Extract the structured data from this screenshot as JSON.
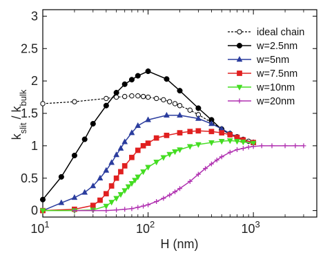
{
  "chart_data": {
    "type": "line",
    "x_scale": "log",
    "xlim": [
      10,
      4000
    ],
    "ylim": [
      -0.1,
      3.1
    ],
    "xlabel": {
      "main": "H (nm)"
    },
    "ylabel": {
      "k1": "k",
      "sub1": "slit",
      "slash": " / ",
      "k2": "k",
      "sub2": "bulk"
    },
    "x_ticks": [
      {
        "value": 10,
        "base": "10",
        "exp": "1"
      },
      {
        "value": 100,
        "base": "10",
        "exp": "2"
      },
      {
        "value": 1000,
        "base": "10",
        "exp": "3"
      }
    ],
    "y_ticks": [
      {
        "value": 0,
        "label": "0"
      },
      {
        "value": 0.5,
        "label": "0.5"
      },
      {
        "value": 1,
        "label": "1"
      },
      {
        "value": 1.5,
        "label": "1.5"
      },
      {
        "value": 2,
        "label": "2"
      },
      {
        "value": 2.5,
        "label": "2.5"
      },
      {
        "value": 3,
        "label": "3"
      }
    ],
    "grid": false,
    "legend_position": "top-right",
    "series": [
      {
        "name": "ideal chain",
        "color": "#000000",
        "marker": "open-circle",
        "dashed": true,
        "x": [
          10,
          20,
          40,
          50,
          60,
          70,
          80,
          90,
          100,
          120,
          140,
          160,
          180,
          200,
          250,
          300,
          400,
          500,
          600,
          700,
          800,
          900,
          1000
        ],
        "y": [
          1.65,
          1.68,
          1.73,
          1.75,
          1.76,
          1.77,
          1.77,
          1.76,
          1.75,
          1.73,
          1.71,
          1.68,
          1.65,
          1.62,
          1.55,
          1.48,
          1.36,
          1.26,
          1.19,
          1.14,
          1.1,
          1.07,
          1.05
        ]
      },
      {
        "name": "w=2.5nm",
        "color": "#000000",
        "marker": "filled-circle",
        "dashed": false,
        "x": [
          10,
          15,
          20,
          25,
          30,
          40,
          50,
          60,
          70,
          80,
          100,
          150,
          200,
          300,
          400,
          500,
          700,
          1000
        ],
        "y": [
          0.17,
          0.52,
          0.85,
          1.1,
          1.34,
          1.62,
          1.82,
          1.95,
          2.02,
          2.08,
          2.15,
          2.03,
          1.85,
          1.58,
          1.4,
          1.25,
          1.12,
          1.05
        ]
      },
      {
        "name": "w=5nm",
        "color": "#2b3d9e",
        "marker": "triangle-up",
        "dashed": false,
        "x": [
          10,
          15,
          20,
          25,
          30,
          35,
          40,
          45,
          50,
          55,
          60,
          70,
          80,
          100,
          150,
          200,
          300,
          400,
          500,
          600,
          700,
          800,
          1000
        ],
        "y": [
          0.0,
          0.12,
          0.2,
          0.28,
          0.38,
          0.5,
          0.62,
          0.74,
          0.86,
          0.96,
          1.06,
          1.2,
          1.31,
          1.4,
          1.47,
          1.47,
          1.42,
          1.34,
          1.26,
          1.19,
          1.13,
          1.09,
          1.05
        ]
      },
      {
        "name": "w=7.5nm",
        "color": "#e02020",
        "marker": "square",
        "dashed": false,
        "x": [
          10,
          20,
          30,
          35,
          40,
          45,
          50,
          55,
          60,
          70,
          80,
          90,
          100,
          120,
          150,
          200,
          250,
          300,
          400,
          500,
          600,
          700,
          800,
          1000
        ],
        "y": [
          0.0,
          0.02,
          0.08,
          0.16,
          0.26,
          0.38,
          0.5,
          0.6,
          0.69,
          0.82,
          0.93,
          1.0,
          1.04,
          1.12,
          1.16,
          1.2,
          1.22,
          1.23,
          1.22,
          1.2,
          1.17,
          1.13,
          1.09,
          1.05
        ]
      },
      {
        "name": "w=10nm",
        "color": "#44dd22",
        "marker": "triangle-down",
        "dashed": false,
        "x": [
          10,
          20,
          30,
          40,
          45,
          50,
          55,
          60,
          65,
          70,
          75,
          80,
          90,
          100,
          120,
          140,
          160,
          180,
          200,
          250,
          300,
          400,
          500,
          600,
          700,
          800,
          1000
        ],
        "y": [
          0.0,
          0.0,
          0.01,
          0.07,
          0.13,
          0.19,
          0.25,
          0.31,
          0.37,
          0.42,
          0.47,
          0.52,
          0.6,
          0.67,
          0.75,
          0.82,
          0.87,
          0.91,
          0.94,
          0.99,
          1.02,
          1.05,
          1.07,
          1.08,
          1.07,
          1.06,
          1.04
        ]
      },
      {
        "name": "w=20nm",
        "color": "#b030b0",
        "marker": "plus",
        "dashed": false,
        "x": [
          20,
          30,
          40,
          50,
          60,
          70,
          80,
          90,
          100,
          120,
          140,
          160,
          180,
          200,
          250,
          300,
          350,
          400,
          450,
          500,
          600,
          700,
          800,
          900,
          1000,
          1200,
          1500,
          2000,
          2500,
          3000
        ],
        "y": [
          0.0,
          0.0,
          0.0,
          0.01,
          0.02,
          0.03,
          0.05,
          0.07,
          0.09,
          0.14,
          0.19,
          0.24,
          0.29,
          0.34,
          0.45,
          0.56,
          0.65,
          0.72,
          0.78,
          0.83,
          0.9,
          0.94,
          0.96,
          0.98,
          0.99,
          1.0,
          1.0,
          1.0,
          1.0,
          1.0
        ]
      }
    ]
  }
}
